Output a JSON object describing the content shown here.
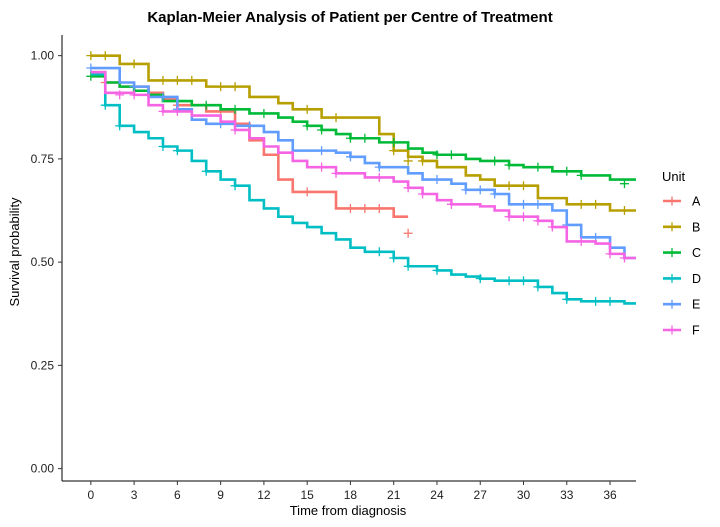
{
  "chart_data": {
    "type": "line",
    "subtype": "kaplan-meier step curves with censor marks",
    "title": "Kaplan-Meier Analysis of Patient per Centre of Treatment",
    "xlabel": "Time from diagnosis",
    "ylabel": "Survival probability",
    "xlim": [
      -2,
      37.8
    ],
    "ylim": [
      -0.03,
      1.05
    ],
    "x_ticks": [
      0,
      3,
      6,
      9,
      12,
      15,
      18,
      21,
      24,
      27,
      30,
      33,
      36
    ],
    "x_tick_labels": [
      "0",
      "3",
      "6",
      "9",
      "12",
      "15",
      "18",
      "21",
      "24",
      "27",
      "30",
      "33",
      "36"
    ],
    "y_ticks": [
      0,
      0.25,
      0.5,
      0.75,
      1.0
    ],
    "y_tick_labels": [
      "0.00",
      "0.25",
      "0.50",
      "0.75",
      "1.00"
    ],
    "grid": false,
    "legend": {
      "title": "Unit",
      "position": "right"
    },
    "series": [
      {
        "name": "A",
        "color": "#F8766D",
        "steps": [
          [
            0,
            0.96
          ],
          [
            1,
            0.935
          ],
          [
            2,
            0.925
          ],
          [
            4,
            0.91
          ],
          [
            5,
            0.895
          ],
          [
            6,
            0.88
          ],
          [
            8,
            0.865
          ],
          [
            10,
            0.835
          ],
          [
            11,
            0.795
          ],
          [
            12,
            0.76
          ],
          [
            13,
            0.7
          ],
          [
            14,
            0.67
          ],
          [
            17,
            0.63
          ],
          [
            21,
            0.61
          ]
        ],
        "end": 22,
        "censors": [
          [
            1,
            0.935
          ],
          [
            3,
            0.925
          ],
          [
            6,
            0.88
          ],
          [
            9,
            0.865
          ],
          [
            15,
            0.67
          ],
          [
            18,
            0.63
          ],
          [
            19,
            0.63
          ],
          [
            20,
            0.63
          ],
          [
            22,
            0.57
          ]
        ]
      },
      {
        "name": "B",
        "color": "#B79F00",
        "steps": [
          [
            0,
            1.0
          ],
          [
            2,
            0.98
          ],
          [
            4,
            0.94
          ],
          [
            8,
            0.925
          ],
          [
            11,
            0.9
          ],
          [
            13,
            0.885
          ],
          [
            14,
            0.87
          ],
          [
            16,
            0.85
          ],
          [
            20,
            0.81
          ],
          [
            21,
            0.77
          ],
          [
            22,
            0.755
          ],
          [
            23,
            0.745
          ],
          [
            24,
            0.73
          ],
          [
            26,
            0.71
          ],
          [
            27,
            0.7
          ],
          [
            28,
            0.685
          ],
          [
            31,
            0.655
          ],
          [
            33,
            0.64
          ],
          [
            36,
            0.625
          ]
        ],
        "end": 37.8,
        "censors": [
          [
            0,
            1.0
          ],
          [
            1,
            1.0
          ],
          [
            3,
            0.98
          ],
          [
            5,
            0.94
          ],
          [
            6,
            0.94
          ],
          [
            7,
            0.94
          ],
          [
            9,
            0.925
          ],
          [
            10,
            0.925
          ],
          [
            15,
            0.87
          ],
          [
            17,
            0.85
          ],
          [
            21,
            0.77
          ],
          [
            22,
            0.745
          ],
          [
            23,
            0.745
          ],
          [
            29,
            0.685
          ],
          [
            30,
            0.685
          ],
          [
            34,
            0.64
          ],
          [
            35,
            0.64
          ],
          [
            37,
            0.625
          ]
        ]
      },
      {
        "name": "C",
        "color": "#00BA38",
        "steps": [
          [
            0,
            0.95
          ],
          [
            1,
            0.935
          ],
          [
            2,
            0.925
          ],
          [
            3,
            0.915
          ],
          [
            4,
            0.905
          ],
          [
            5,
            0.89
          ],
          [
            7,
            0.88
          ],
          [
            9,
            0.87
          ],
          [
            11,
            0.86
          ],
          [
            13,
            0.85
          ],
          [
            14,
            0.84
          ],
          [
            15,
            0.83
          ],
          [
            16,
            0.82
          ],
          [
            17,
            0.81
          ],
          [
            18,
            0.8
          ],
          [
            20,
            0.79
          ],
          [
            22,
            0.775
          ],
          [
            23,
            0.765
          ],
          [
            24,
            0.76
          ],
          [
            26,
            0.75
          ],
          [
            27,
            0.745
          ],
          [
            29,
            0.735
          ],
          [
            30,
            0.73
          ],
          [
            32,
            0.72
          ],
          [
            34,
            0.71
          ],
          [
            36,
            0.7
          ]
        ],
        "end": 37.8,
        "censors": [
          [
            0,
            0.95
          ],
          [
            6,
            0.89
          ],
          [
            8,
            0.88
          ],
          [
            10,
            0.87
          ],
          [
            12,
            0.86
          ],
          [
            15,
            0.83
          ],
          [
            16,
            0.82
          ],
          [
            18,
            0.8
          ],
          [
            19,
            0.8
          ],
          [
            21,
            0.79
          ],
          [
            24,
            0.76
          ],
          [
            25,
            0.76
          ],
          [
            28,
            0.745
          ],
          [
            29,
            0.735
          ],
          [
            31,
            0.73
          ],
          [
            33,
            0.72
          ],
          [
            34,
            0.71
          ],
          [
            37,
            0.69
          ]
        ]
      },
      {
        "name": "D",
        "color": "#00BFC4",
        "steps": [
          [
            0,
            0.955
          ],
          [
            1,
            0.88
          ],
          [
            2,
            0.83
          ],
          [
            3,
            0.815
          ],
          [
            4,
            0.8
          ],
          [
            5,
            0.78
          ],
          [
            6,
            0.77
          ],
          [
            7,
            0.745
          ],
          [
            8,
            0.72
          ],
          [
            9,
            0.7
          ],
          [
            10,
            0.685
          ],
          [
            11,
            0.65
          ],
          [
            12,
            0.63
          ],
          [
            13,
            0.61
          ],
          [
            14,
            0.595
          ],
          [
            15,
            0.585
          ],
          [
            16,
            0.57
          ],
          [
            17,
            0.555
          ],
          [
            18,
            0.535
          ],
          [
            19,
            0.525
          ],
          [
            21,
            0.51
          ],
          [
            22,
            0.49
          ],
          [
            24,
            0.48
          ],
          [
            25,
            0.47
          ],
          [
            26,
            0.465
          ],
          [
            27,
            0.46
          ],
          [
            28,
            0.455
          ],
          [
            31,
            0.44
          ],
          [
            32,
            0.425
          ],
          [
            33,
            0.41
          ],
          [
            34,
            0.405
          ],
          [
            37,
            0.4
          ]
        ],
        "end": 37.8,
        "censors": [
          [
            1,
            0.88
          ],
          [
            2,
            0.83
          ],
          [
            5,
            0.78
          ],
          [
            6,
            0.77
          ],
          [
            8,
            0.72
          ],
          [
            10,
            0.685
          ],
          [
            20,
            0.525
          ],
          [
            21,
            0.51
          ],
          [
            22,
            0.49
          ],
          [
            24,
            0.48
          ],
          [
            27,
            0.46
          ],
          [
            29,
            0.455
          ],
          [
            30,
            0.455
          ],
          [
            31,
            0.44
          ],
          [
            33,
            0.41
          ],
          [
            35,
            0.405
          ],
          [
            36,
            0.405
          ]
        ]
      },
      {
        "name": "E",
        "color": "#619CFF",
        "steps": [
          [
            0,
            0.97
          ],
          [
            2,
            0.935
          ],
          [
            3,
            0.925
          ],
          [
            4,
            0.9
          ],
          [
            6,
            0.87
          ],
          [
            7,
            0.845
          ],
          [
            8,
            0.835
          ],
          [
            10,
            0.83
          ],
          [
            12,
            0.815
          ],
          [
            13,
            0.795
          ],
          [
            14,
            0.77
          ],
          [
            17,
            0.765
          ],
          [
            18,
            0.755
          ],
          [
            19,
            0.74
          ],
          [
            20,
            0.73
          ],
          [
            22,
            0.715
          ],
          [
            23,
            0.7
          ],
          [
            25,
            0.69
          ],
          [
            26,
            0.675
          ],
          [
            28,
            0.665
          ],
          [
            29,
            0.64
          ],
          [
            32,
            0.625
          ],
          [
            33,
            0.59
          ],
          [
            34,
            0.56
          ],
          [
            36,
            0.535
          ],
          [
            37,
            0.51
          ]
        ],
        "end": 37.8,
        "censors": [
          [
            0,
            0.97
          ],
          [
            3,
            0.925
          ],
          [
            5,
            0.9
          ],
          [
            6,
            0.87
          ],
          [
            9,
            0.835
          ],
          [
            11,
            0.83
          ],
          [
            16,
            0.77
          ],
          [
            18,
            0.755
          ],
          [
            20,
            0.73
          ],
          [
            24,
            0.7
          ],
          [
            26,
            0.675
          ],
          [
            27,
            0.675
          ],
          [
            28,
            0.665
          ],
          [
            30,
            0.64
          ],
          [
            31,
            0.64
          ],
          [
            33,
            0.59
          ],
          [
            35,
            0.56
          ]
        ]
      },
      {
        "name": "F",
        "color": "#F564E3",
        "steps": [
          [
            0,
            0.96
          ],
          [
            1,
            0.91
          ],
          [
            3,
            0.905
          ],
          [
            4,
            0.88
          ],
          [
            5,
            0.865
          ],
          [
            7,
            0.855
          ],
          [
            9,
            0.84
          ],
          [
            10,
            0.82
          ],
          [
            11,
            0.8
          ],
          [
            12,
            0.78
          ],
          [
            13,
            0.765
          ],
          [
            14,
            0.745
          ],
          [
            15,
            0.73
          ],
          [
            17,
            0.715
          ],
          [
            19,
            0.705
          ],
          [
            21,
            0.695
          ],
          [
            22,
            0.68
          ],
          [
            23,
            0.665
          ],
          [
            24,
            0.65
          ],
          [
            25,
            0.64
          ],
          [
            27,
            0.635
          ],
          [
            28,
            0.625
          ],
          [
            29,
            0.61
          ],
          [
            31,
            0.6
          ],
          [
            32,
            0.585
          ],
          [
            33,
            0.55
          ],
          [
            35,
            0.545
          ],
          [
            36,
            0.52
          ],
          [
            37,
            0.51
          ]
        ],
        "end": 37.8,
        "censors": [
          [
            2,
            0.905
          ],
          [
            3,
            0.905
          ],
          [
            5,
            0.865
          ],
          [
            6,
            0.865
          ],
          [
            10,
            0.82
          ],
          [
            16,
            0.73
          ],
          [
            17,
            0.715
          ],
          [
            20,
            0.705
          ],
          [
            22,
            0.68
          ],
          [
            23,
            0.665
          ],
          [
            25,
            0.64
          ],
          [
            29,
            0.61
          ],
          [
            30,
            0.61
          ],
          [
            31,
            0.6
          ],
          [
            32,
            0.585
          ],
          [
            34,
            0.55
          ],
          [
            36,
            0.52
          ],
          [
            37,
            0.51
          ]
        ]
      }
    ]
  }
}
